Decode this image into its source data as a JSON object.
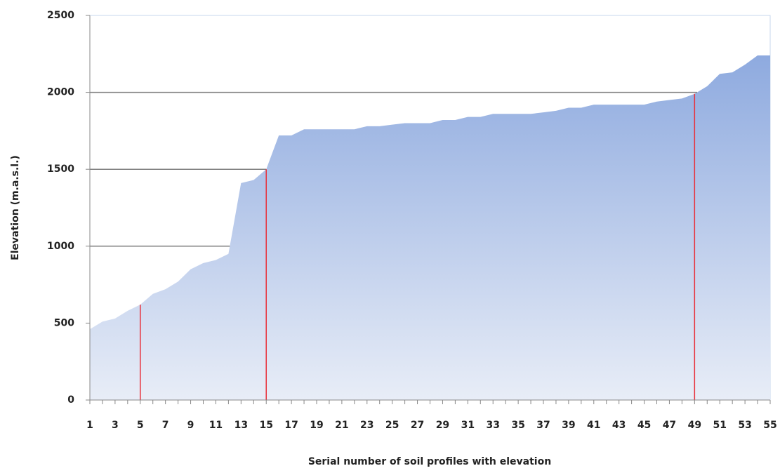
{
  "chart_data": {
    "type": "area",
    "xlabel": "Serial number of soil profiles with elevation",
    "ylabel": "Elevation (m.a.s.l.)",
    "x": [
      1,
      2,
      3,
      4,
      5,
      6,
      7,
      8,
      9,
      10,
      11,
      12,
      13,
      14,
      15,
      16,
      17,
      18,
      19,
      20,
      21,
      22,
      23,
      24,
      25,
      26,
      27,
      28,
      29,
      30,
      31,
      32,
      33,
      34,
      35,
      36,
      37,
      38,
      39,
      40,
      41,
      42,
      43,
      44,
      45,
      46,
      47,
      48,
      49,
      50,
      51,
      52,
      53,
      54,
      55
    ],
    "values": [
      460,
      510,
      530,
      580,
      620,
      690,
      720,
      770,
      850,
      890,
      910,
      950,
      1410,
      1430,
      1500,
      1720,
      1720,
      1760,
      1760,
      1760,
      1760,
      1760,
      1780,
      1780,
      1790,
      1800,
      1800,
      1800,
      1820,
      1820,
      1840,
      1840,
      1860,
      1860,
      1860,
      1860,
      1870,
      1880,
      1900,
      1900,
      1920,
      1920,
      1920,
      1920,
      1920,
      1940,
      1950,
      1960,
      1990,
      2040,
      2120,
      2130,
      2180,
      2240,
      2240
    ],
    "color_top": "#8eaadf",
    "color_bottom": "#e8edf7",
    "xlim": [
      1,
      55
    ],
    "xticks": [
      1,
      3,
      5,
      7,
      9,
      11,
      13,
      15,
      17,
      19,
      21,
      23,
      25,
      27,
      29,
      31,
      33,
      35,
      37,
      39,
      41,
      43,
      45,
      47,
      49,
      51,
      53,
      55
    ],
    "ylim": [
      0,
      2500
    ],
    "yticks": [
      0,
      500,
      1000,
      1500,
      2000,
      2500
    ],
    "hlines": [
      1000,
      1500,
      2000
    ],
    "hline_color": "#7f7f7f",
    "vlines": [
      5,
      15,
      49
    ],
    "vline_color": "#e8303a"
  }
}
